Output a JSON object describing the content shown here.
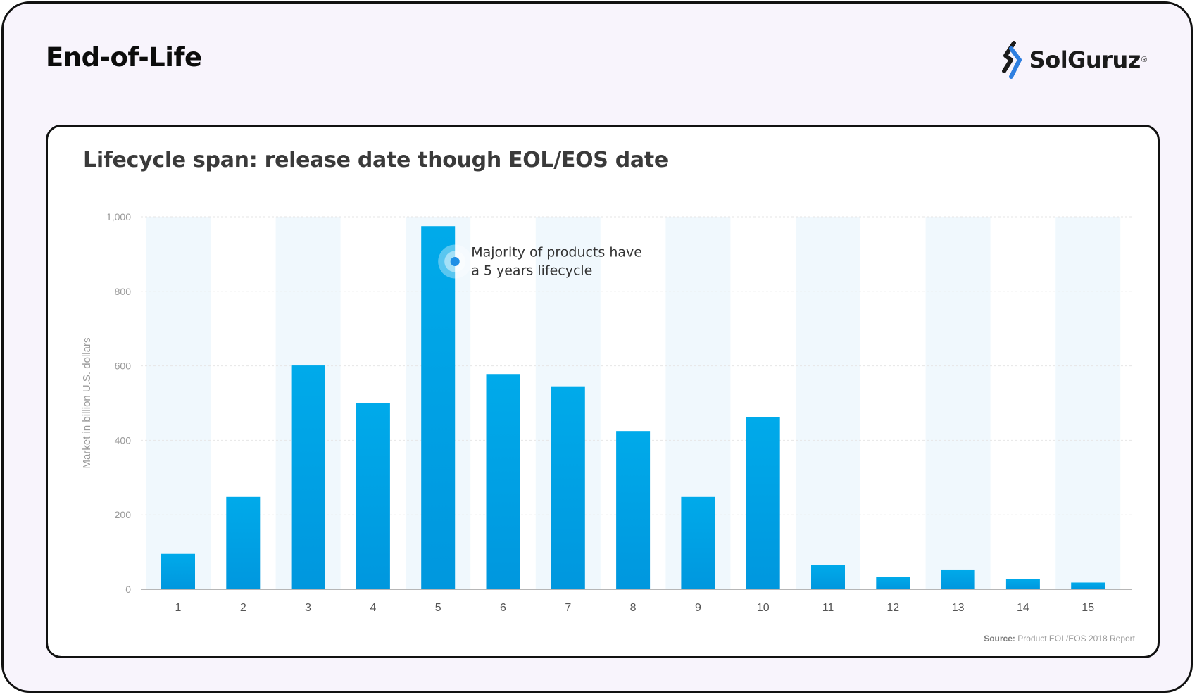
{
  "header": {
    "title": "End-of-Life",
    "logo_text": "SolGuruz",
    "logo_mark": "®"
  },
  "colors": {
    "bar": "#00aaea",
    "band": "#f0f8fd",
    "grid": "#e6e6e6",
    "axis": "#9d9d9d",
    "annotation_dot": "#1f8fe5"
  },
  "chart_data": {
    "type": "bar",
    "title": "Lifecycle span: release date though EOL/EOS date",
    "ylabel": "Market in billion U.S. dollars",
    "xlabel": "",
    "categories": [
      "1",
      "2",
      "3",
      "4",
      "5",
      "6",
      "7",
      "8",
      "9",
      "10",
      "11",
      "12",
      "13",
      "14",
      "15"
    ],
    "values": [
      95,
      248,
      601,
      500,
      975,
      578,
      545,
      425,
      248,
      462,
      66,
      33,
      53,
      28,
      18
    ],
    "ylim": [
      0,
      1000
    ],
    "yticks": [
      0,
      200,
      400,
      600,
      800,
      1000
    ],
    "ytick_labels": [
      "0",
      "200",
      "400",
      "600",
      "800",
      "1,000"
    ],
    "grid": true,
    "annotation": {
      "category": "5",
      "value": 880,
      "lines": [
        "Majority of products have",
        "a 5 years lifecycle"
      ]
    },
    "source_label": "Source:",
    "source_text": "Product EOL/EOS 2018 Report"
  }
}
